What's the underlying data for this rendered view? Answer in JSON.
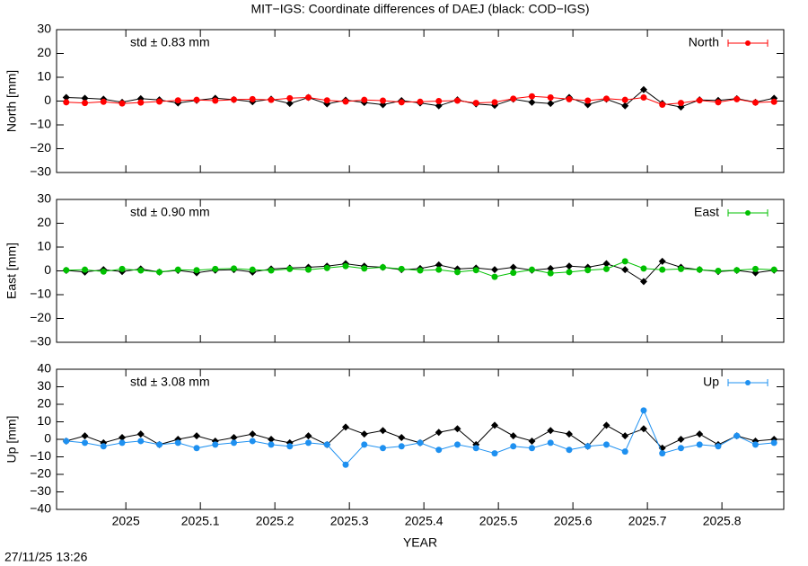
{
  "title": "MIT−IGS: Coordinate differences of DAEJ (black: COD−IGS)",
  "timestamp": "27/11/25 13:26",
  "chart_data": [
    {
      "type": "line",
      "ylabel": "North [mm]",
      "annotation": "std ± 0.83 mm",
      "legend": "top-right",
      "xlim": [
        2024.907,
        2025.883
      ],
      "x": [
        2024.92,
        2024.945,
        2024.97,
        2024.995,
        2025.02,
        2025.045,
        2025.07,
        2025.095,
        2025.12,
        2025.145,
        2025.17,
        2025.195,
        2025.22,
        2025.245,
        2025.27,
        2025.295,
        2025.32,
        2025.345,
        2025.37,
        2025.395,
        2025.42,
        2025.445,
        2025.47,
        2025.495,
        2025.52,
        2025.545,
        2025.57,
        2025.595,
        2025.62,
        2025.645,
        2025.67,
        2025.695,
        2025.72,
        2025.745,
        2025.77,
        2025.795,
        2025.82,
        2025.845,
        2025.87
      ],
      "ylim": [
        -30,
        30
      ],
      "yticks": [
        {
          "value": -30,
          "label": "−30"
        },
        {
          "value": -20,
          "label": "−20"
        },
        {
          "value": -10,
          "label": "−10"
        },
        0,
        10,
        20,
        30
      ],
      "series": [
        {
          "color": "#000000",
          "values": [
            1.5,
            1.2,
            0.8,
            -0.5,
            1.0,
            0.5,
            -0.8,
            0.3,
            1.2,
            0.6,
            -0.3,
            0.8,
            -1.0,
            1.5,
            -1.2,
            0.4,
            -0.6,
            -1.5,
            0.2,
            -0.8,
            -2.0,
            0.5,
            -1.2,
            -1.8,
            0.8,
            -0.5,
            -1.0,
            1.5,
            -1.5,
            0.8,
            -2.0,
            4.8,
            -1.0,
            -2.5,
            0.5,
            0.3,
            1.0,
            -0.5,
            1.2
          ]
        },
        {
          "name": "North",
          "color": "#ff0000",
          "values": [
            -0.5,
            -0.8,
            -0.3,
            -1.0,
            -0.6,
            -0.2,
            0.3,
            0.5,
            0.2,
            0.6,
            0.8,
            0.5,
            1.2,
            1.5,
            0.3,
            -0.2,
            0.5,
            0.2,
            -0.5,
            -0.3,
            0.0,
            0.2,
            -0.8,
            -0.5,
            1.0,
            2.0,
            1.5,
            0.8,
            0.2,
            1.0,
            0.5,
            1.5,
            -1.5,
            -0.8,
            0.3,
            -0.5,
            0.8,
            -0.6,
            -0.3
          ]
        }
      ]
    },
    {
      "type": "line",
      "ylabel": "East [mm]",
      "annotation": "std ± 0.90 mm",
      "legend": "top-right",
      "xlim": [
        2024.907,
        2025.883
      ],
      "x": [
        2024.92,
        2024.945,
        2024.97,
        2024.995,
        2025.02,
        2025.045,
        2025.07,
        2025.095,
        2025.12,
        2025.145,
        2025.17,
        2025.195,
        2025.22,
        2025.245,
        2025.27,
        2025.295,
        2025.32,
        2025.345,
        2025.37,
        2025.395,
        2025.42,
        2025.445,
        2025.47,
        2025.495,
        2025.52,
        2025.545,
        2025.57,
        2025.595,
        2025.62,
        2025.645,
        2025.67,
        2025.695,
        2025.72,
        2025.745,
        2025.77,
        2025.795,
        2025.82,
        2025.845,
        2025.87
      ],
      "ylim": [
        -30,
        30
      ],
      "yticks": [
        {
          "value": -30,
          "label": "−30"
        },
        {
          "value": -20,
          "label": "−20"
        },
        {
          "value": -10,
          "label": "−10"
        },
        0,
        10,
        20,
        30
      ],
      "series": [
        {
          "color": "#000000",
          "values": [
            0.2,
            -0.5,
            0.5,
            -0.3,
            0.8,
            -0.5,
            0.2,
            -0.8,
            0.3,
            0.5,
            -0.5,
            0.8,
            1.2,
            1.5,
            2.0,
            3.0,
            2.0,
            1.5,
            0.5,
            1.0,
            2.5,
            0.8,
            1.2,
            0.5,
            1.5,
            0.3,
            1.0,
            2.0,
            1.5,
            3.0,
            0.5,
            -4.5,
            4.0,
            1.5,
            0.5,
            -0.3,
            0.2,
            -0.8,
            0.3
          ]
        },
        {
          "name": "East",
          "color": "#00c000",
          "values": [
            0.3,
            0.5,
            -0.3,
            0.8,
            0.2,
            -0.5,
            0.5,
            0.3,
            0.8,
            1.0,
            0.5,
            0.2,
            0.8,
            0.5,
            1.2,
            2.0,
            1.0,
            1.5,
            0.8,
            0.2,
            0.5,
            -0.5,
            0.3,
            -2.5,
            -0.8,
            0.5,
            -1.0,
            -0.5,
            0.3,
            0.8,
            4.0,
            1.0,
            0.5,
            0.8,
            0.5,
            0.0,
            0.3,
            0.8,
            0.5
          ]
        }
      ]
    },
    {
      "type": "line",
      "ylabel": "Up [mm]",
      "annotation": "std ± 3.08 mm",
      "legend": "top-right",
      "xlabel": "YEAR",
      "xlim": [
        2024.907,
        2025.883
      ],
      "xticks": [
        2025,
        2025.1,
        2025.2,
        2025.3,
        2025.4,
        2025.5,
        2025.6,
        2025.7,
        2025.8
      ],
      "x": [
        2024.92,
        2024.945,
        2024.97,
        2024.995,
        2025.02,
        2025.045,
        2025.07,
        2025.095,
        2025.12,
        2025.145,
        2025.17,
        2025.195,
        2025.22,
        2025.245,
        2025.27,
        2025.295,
        2025.32,
        2025.345,
        2025.37,
        2025.395,
        2025.42,
        2025.445,
        2025.47,
        2025.495,
        2025.52,
        2025.545,
        2025.57,
        2025.595,
        2025.62,
        2025.645,
        2025.67,
        2025.695,
        2025.72,
        2025.745,
        2025.77,
        2025.795,
        2025.82,
        2025.845,
        2025.87
      ],
      "ylim": [
        -40,
        40
      ],
      "yticks": [
        {
          "value": -40,
          "label": "−40"
        },
        {
          "value": -30,
          "label": "−30"
        },
        {
          "value": -20,
          "label": "−20"
        },
        {
          "value": -10,
          "label": "−10"
        },
        0,
        10,
        20,
        30,
        40
      ],
      "series": [
        {
          "color": "#000000",
          "values": [
            -1,
            2,
            -2,
            1,
            3,
            -3,
            0,
            2,
            -1,
            1,
            3,
            0,
            -2,
            2,
            -3,
            7,
            3,
            5,
            1,
            -2,
            4,
            6,
            -3,
            8,
            2,
            -1,
            5,
            3,
            -4,
            8,
            2,
            6,
            -5,
            0,
            3,
            -3,
            2,
            -1,
            0
          ]
        },
        {
          "name": "Up",
          "color": "#1e90f0",
          "values": [
            -1,
            -2,
            -4,
            -2,
            -1,
            -3,
            -2,
            -5,
            -3,
            -2,
            -1,
            -3,
            -4,
            -2,
            -3,
            -14.5,
            -3,
            -5,
            -4,
            -2,
            -6,
            -3,
            -5,
            -8,
            -4,
            -5,
            -2,
            -6,
            -4,
            -3,
            -7,
            16.5,
            -8,
            -5,
            -3,
            -4,
            2,
            -3,
            -2
          ]
        }
      ]
    }
  ]
}
